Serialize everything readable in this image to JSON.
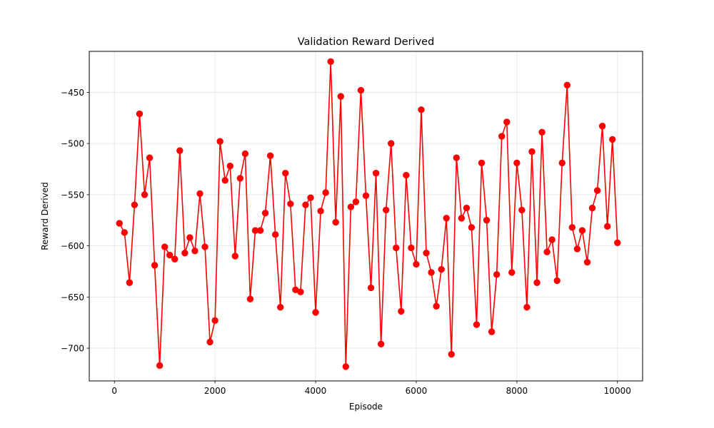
{
  "chart_data": {
    "type": "line",
    "title": "Validation Reward Derived",
    "xlabel": "Episode",
    "ylabel": "Reward Derived",
    "xlim": [
      -500,
      10500
    ],
    "ylim": [
      -732,
      -410
    ],
    "xticks": [
      0,
      2000,
      4000,
      6000,
      8000,
      10000
    ],
    "yticks": [
      -700,
      -650,
      -600,
      -550,
      -500,
      -450
    ],
    "grid": true,
    "series": [
      {
        "color": "#ff0000",
        "marker": "circle",
        "x": [
          100,
          200,
          300,
          400,
          500,
          600,
          700,
          800,
          900,
          1000,
          1100,
          1200,
          1300,
          1400,
          1500,
          1600,
          1700,
          1800,
          1900,
          2000,
          2100,
          2200,
          2300,
          2400,
          2500,
          2600,
          2700,
          2800,
          2900,
          3000,
          3100,
          3200,
          3300,
          3400,
          3500,
          3600,
          3700,
          3800,
          3900,
          4000,
          4100,
          4200,
          4300,
          4400,
          4500,
          4600,
          4700,
          4800,
          4900,
          5000,
          5100,
          5200,
          5300,
          5400,
          5500,
          5600,
          5700,
          5800,
          5900,
          6000,
          6100,
          6200,
          6300,
          6400,
          6500,
          6600,
          6700,
          6800,
          6900,
          7000,
          7100,
          7200,
          7300,
          7400,
          7500,
          7600,
          7700,
          7800,
          7900,
          8000,
          8100,
          8200,
          8300,
          8400,
          8500,
          8600,
          8700,
          8800,
          8900,
          9000,
          9100,
          9200,
          9300,
          9400,
          9500,
          9600,
          9700,
          9800,
          9900,
          10000
        ],
        "y": [
          -578,
          -587,
          -636,
          -560,
          -471,
          -550,
          -514,
          -619,
          -717,
          -601,
          -609,
          -613,
          -507,
          -607,
          -592,
          -605,
          -549,
          -601,
          -694,
          -673,
          -498,
          -536,
          -522,
          -610,
          -534,
          -510,
          -652,
          -585,
          -585,
          -568,
          -512,
          -589,
          -660,
          -529,
          -559,
          -643,
          -645,
          -560,
          -553,
          -665,
          -566,
          -548,
          -420,
          -577,
          -454,
          -718,
          -562,
          -557,
          -448,
          -551,
          -641,
          -529,
          -696,
          -565,
          -500,
          -602,
          -664,
          -531,
          -602,
          -618,
          -467,
          -607,
          -626,
          -659,
          -623,
          -573,
          -706,
          -514,
          -573,
          -563,
          -582,
          -677,
          -519,
          -575,
          -684,
          -628,
          -493,
          -479,
          -626,
          -519,
          -565,
          -660,
          -508,
          -636,
          -489,
          -606,
          -594,
          -634,
          -519,
          -443,
          -582,
          -603,
          -585,
          -616,
          -563,
          -546,
          -483,
          -581,
          -496,
          -597
        ]
      }
    ]
  }
}
